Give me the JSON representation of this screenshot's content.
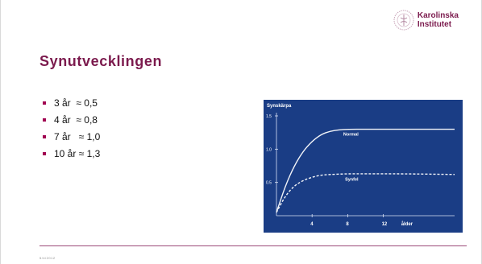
{
  "logo": {
    "line1": "Karolinska",
    "line2": "Institutet",
    "color": "#7b1a4d"
  },
  "title": "Synutvecklingen",
  "bullets": [
    "3 år  ≈ 0,5",
    "4 år  ≈ 0,8",
    "7 år   ≈ 1,0",
    "10 år ≈ 1,3"
  ],
  "chart_data": {
    "type": "line",
    "ylabel": "Synskärpa",
    "xlabel": "ålder",
    "x_ticks": [
      "4",
      "8",
      "12"
    ],
    "y_ticks": [
      "1.5",
      "1.0",
      "0.5"
    ],
    "xlim": [
      0,
      20
    ],
    "ylim": [
      0,
      1.5
    ],
    "background": "#1a3d85",
    "series": [
      {
        "name": "Normal",
        "style": "solid",
        "x": [
          0,
          1,
          2,
          3,
          4,
          5,
          6,
          7,
          8,
          10,
          14,
          20
        ],
        "y": [
          0.05,
          0.45,
          0.75,
          0.97,
          1.12,
          1.22,
          1.27,
          1.29,
          1.3,
          1.3,
          1.3,
          1.3
        ]
      },
      {
        "name": "Synfel",
        "style": "dashed",
        "x": [
          0,
          1,
          2,
          3,
          4,
          5,
          6,
          8,
          10,
          14,
          20
        ],
        "y": [
          0.05,
          0.3,
          0.45,
          0.53,
          0.58,
          0.61,
          0.62,
          0.63,
          0.63,
          0.63,
          0.62
        ]
      }
    ]
  },
  "footer": "5/4/2012"
}
